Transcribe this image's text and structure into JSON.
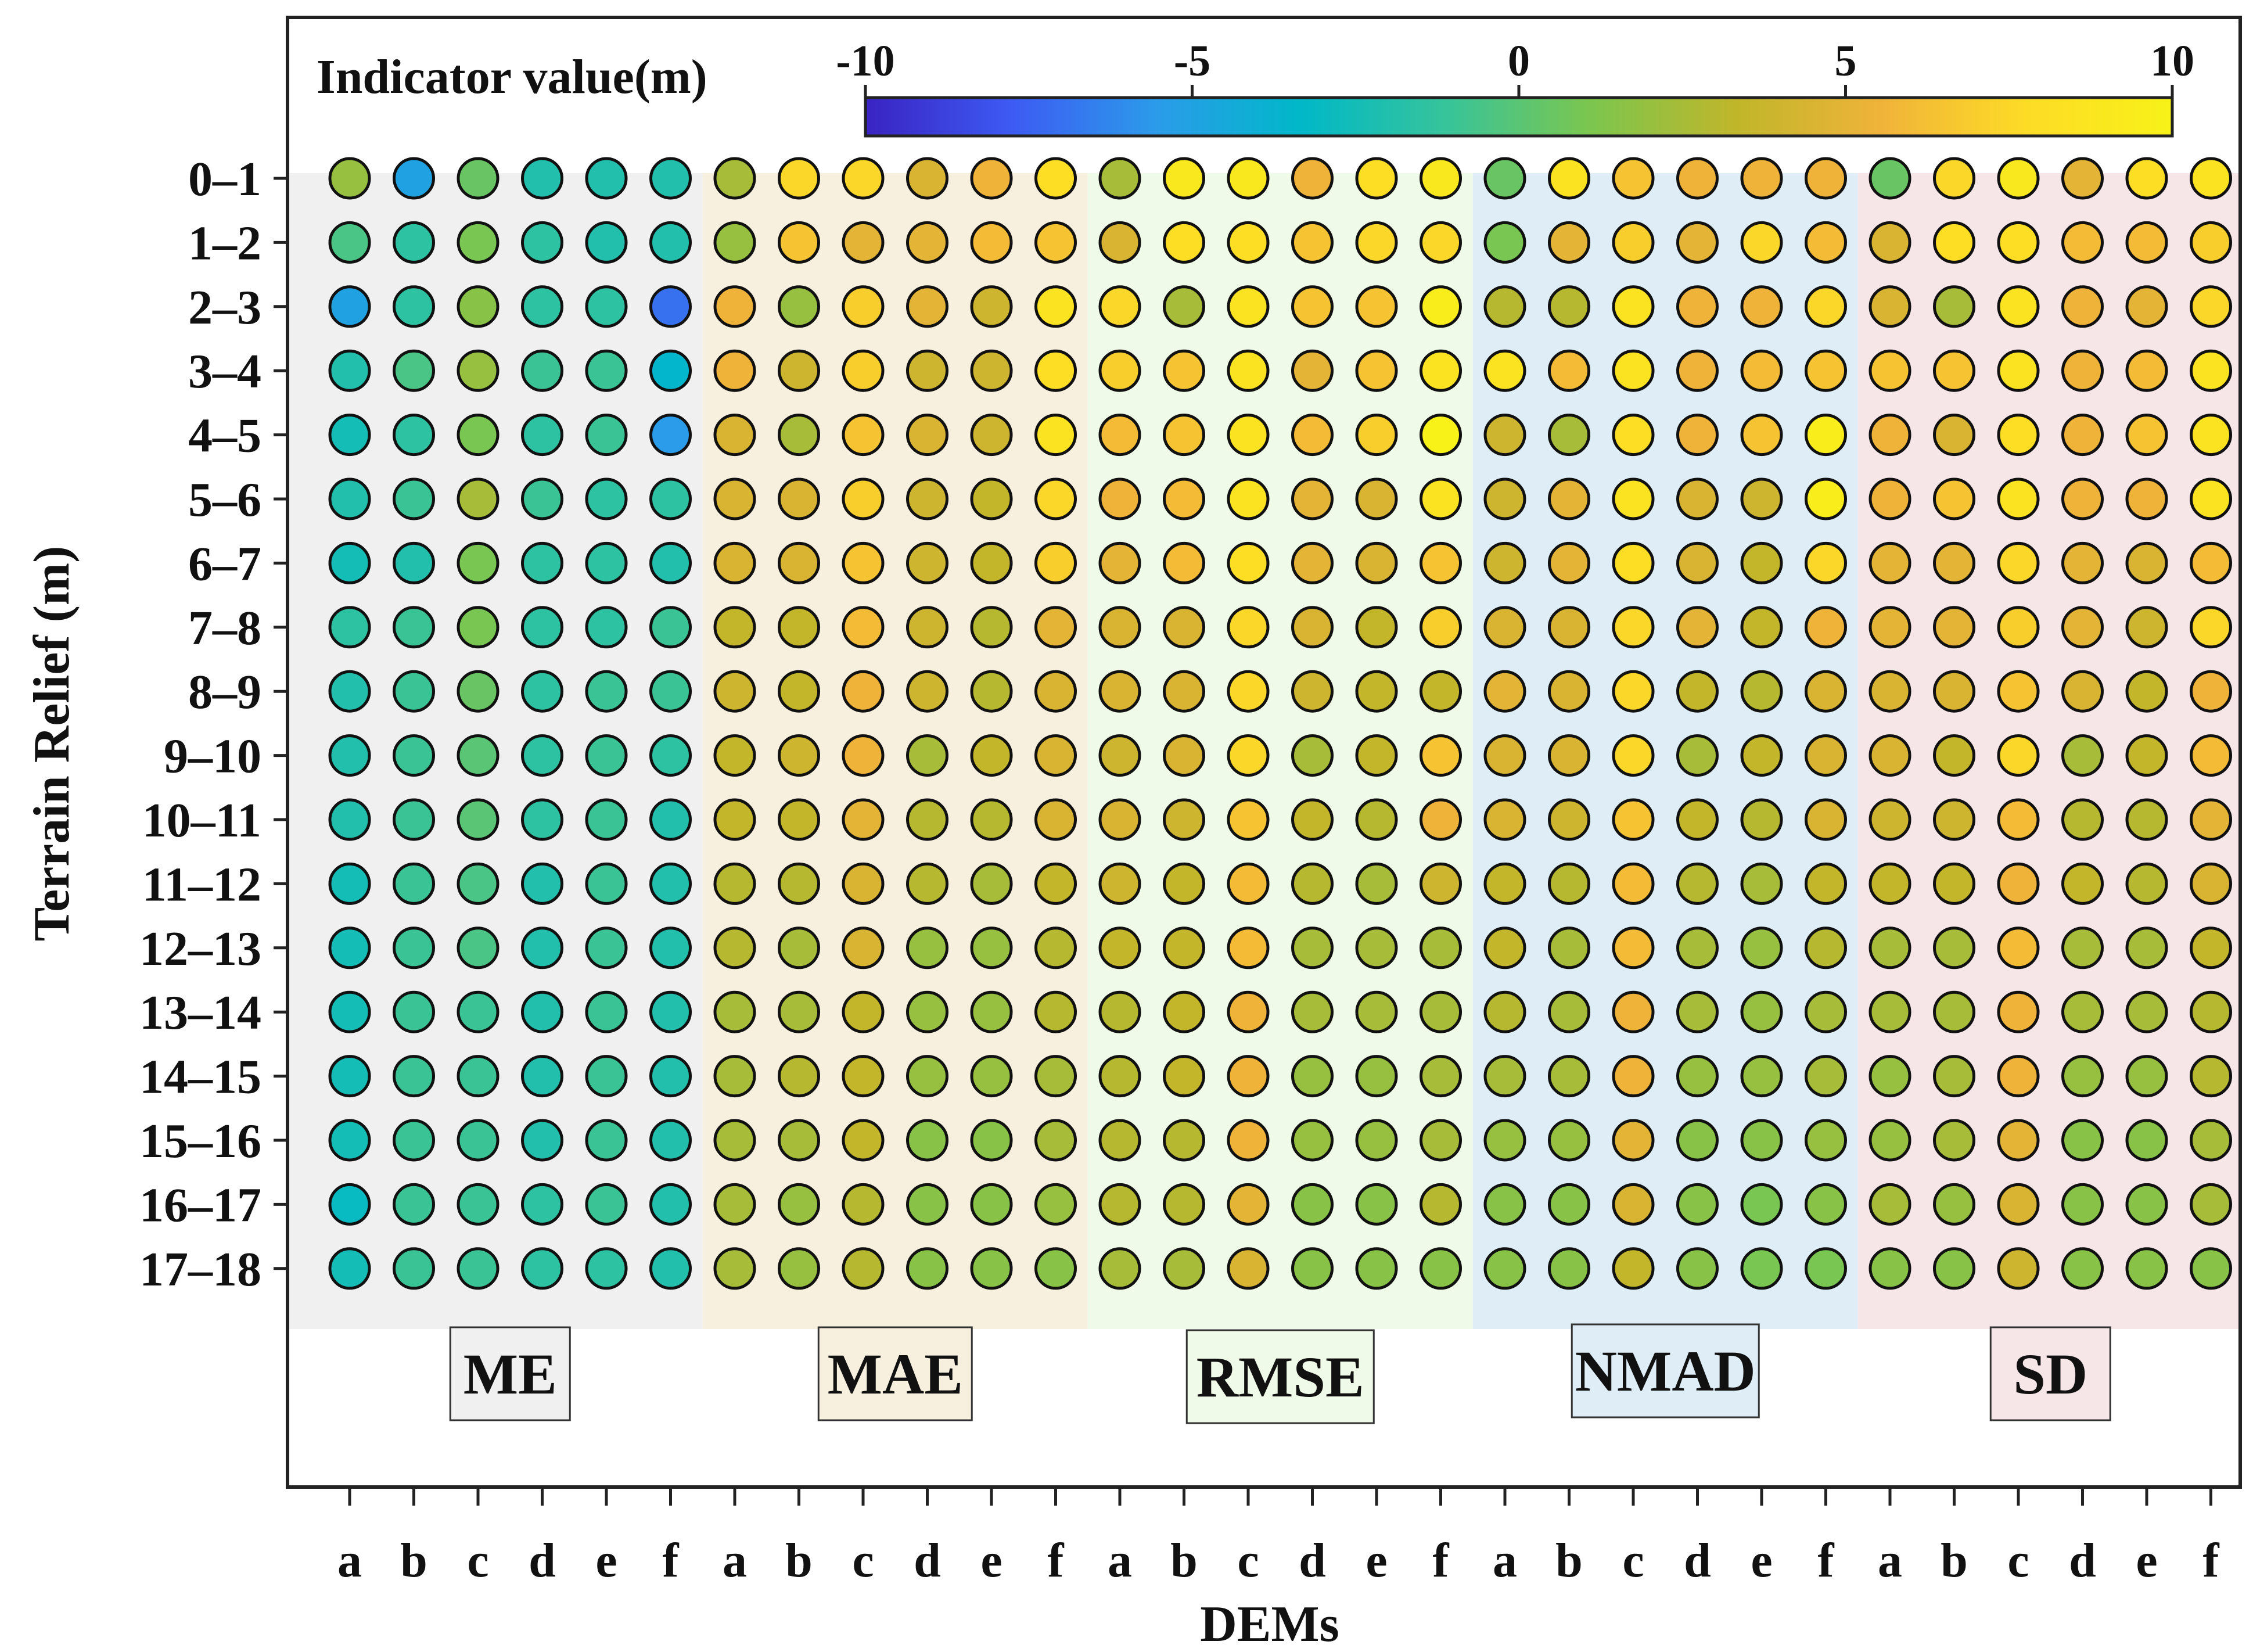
{
  "chart_data": {
    "type": "scatter",
    "title": "",
    "colorbar": {
      "label": "Indicator value(m)",
      "ticks": [
        -10,
        -5,
        0,
        5,
        10
      ],
      "range": [
        -10,
        10
      ],
      "colors": [
        "#3a23c2",
        "#3d5af3",
        "#2b9bea",
        "#00b8c8",
        "#37c49a",
        "#7cc64e",
        "#c0b62a",
        "#f0b33a",
        "#fddc26",
        "#f8f218"
      ]
    },
    "xlabel": "DEMs",
    "ylabel": "Terrain Relief (m)",
    "x_ticks": [
      "a",
      "b",
      "c",
      "d",
      "e",
      "f",
      "a",
      "b",
      "c",
      "d",
      "e",
      "f",
      "a",
      "b",
      "c",
      "d",
      "e",
      "f",
      "a",
      "b",
      "c",
      "d",
      "e",
      "f",
      "a",
      "b",
      "c",
      "d",
      "e",
      "f"
    ],
    "y_ticks": [
      "0–1",
      "1–2",
      "2–3",
      "3–4",
      "4–5",
      "5–6",
      "6–7",
      "7–8",
      "8–9",
      "9–10",
      "10–11",
      "11–12",
      "12–13",
      "13–14",
      "14–15",
      "15–16",
      "16–17",
      "17–18"
    ],
    "groups": [
      {
        "label": "ME",
        "color": "#f0f0f0"
      },
      {
        "label": "MAE",
        "color": "#f8f0df"
      },
      {
        "label": "RMSE",
        "color": "#f0fae8"
      },
      {
        "label": "NMAD",
        "color": "#dfeef6"
      },
      {
        "label": "SD",
        "color": "#f6e6e8"
      }
    ],
    "values": [
      [
        2.0,
        -5.0,
        0.5,
        -2.0,
        -2.0,
        -2.0,
        2.5,
        7.5,
        7.5,
        4.5,
        5.5,
        8.0,
        2.5,
        9.0,
        9.0,
        5.5,
        8.0,
        9.0,
        0.5,
        8.5,
        6.5,
        5.5,
        5.5,
        5.5,
        0.5,
        7.5,
        9.0,
        5.0,
        8.0,
        8.5
      ],
      [
        -0.5,
        -1.5,
        1.0,
        -1.5,
        -2.0,
        -2.0,
        2.0,
        6.5,
        5.0,
        5.0,
        6.0,
        6.5,
        4.5,
        8.0,
        8.0,
        6.5,
        7.5,
        7.5,
        1.0,
        5.0,
        7.0,
        5.0,
        7.5,
        6.0,
        4.5,
        8.0,
        8.0,
        6.0,
        6.0,
        7.0
      ],
      [
        -5.0,
        -1.5,
        1.5,
        -1.5,
        -1.5,
        -7.0,
        5.5,
        2.0,
        7.0,
        5.0,
        4.0,
        8.5,
        7.5,
        2.5,
        8.5,
        6.5,
        6.5,
        9.5,
        3.0,
        3.0,
        8.5,
        5.5,
        5.5,
        7.5,
        4.5,
        2.5,
        8.5,
        5.5,
        5.0,
        7.5
      ],
      [
        -2.0,
        -0.5,
        2.0,
        -1.0,
        -1.0,
        -3.5,
        5.5,
        4.0,
        7.0,
        4.0,
        4.0,
        8.0,
        7.0,
        6.5,
        8.5,
        5.0,
        6.5,
        8.5,
        8.5,
        6.0,
        8.5,
        5.5,
        6.0,
        6.5,
        6.5,
        6.5,
        8.5,
        5.5,
        6.0,
        8.5
      ],
      [
        -2.5,
        -1.5,
        1.0,
        -1.5,
        -1.0,
        -5.5,
        4.5,
        2.5,
        6.5,
        4.5,
        4.0,
        8.5,
        6.0,
        6.5,
        8.5,
        6.0,
        7.0,
        10.0,
        4.0,
        2.5,
        8.0,
        5.5,
        6.5,
        9.5,
        5.5,
        4.5,
        8.0,
        5.5,
        6.5,
        8.5
      ],
      [
        -2.0,
        -1.0,
        2.5,
        -1.0,
        -1.5,
        -1.5,
        4.5,
        4.5,
        7.0,
        4.0,
        3.5,
        7.5,
        5.5,
        6.0,
        8.5,
        5.0,
        4.5,
        8.5,
        4.0,
        5.0,
        8.5,
        4.5,
        4.0,
        9.5,
        5.5,
        6.5,
        8.5,
        5.5,
        5.5,
        8.5
      ],
      [
        -2.5,
        -2.0,
        1.0,
        -1.5,
        -1.5,
        -2.0,
        4.5,
        4.5,
        6.5,
        4.0,
        3.5,
        7.0,
        5.0,
        6.0,
        8.0,
        5.0,
        4.5,
        6.5,
        4.0,
        5.0,
        8.0,
        4.5,
        3.5,
        7.5,
        5.0,
        5.0,
        7.5,
        5.0,
        4.5,
        6.0
      ],
      [
        -1.5,
        -1.0,
        1.0,
        -1.5,
        -1.5,
        -1.0,
        3.5,
        3.5,
        6.0,
        4.0,
        3.0,
        5.0,
        4.5,
        4.5,
        7.5,
        4.5,
        3.5,
        7.0,
        4.5,
        4.5,
        7.5,
        5.0,
        3.5,
        5.5,
        5.0,
        5.0,
        7.0,
        5.0,
        4.0,
        7.5
      ],
      [
        -2.0,
        -1.0,
        0.5,
        -1.5,
        -1.0,
        -1.0,
        4.0,
        3.5,
        5.5,
        4.0,
        3.0,
        4.5,
        4.5,
        4.5,
        7.5,
        4.0,
        3.5,
        3.5,
        5.0,
        4.5,
        7.5,
        3.5,
        3.0,
        4.5,
        4.5,
        4.5,
        6.5,
        4.5,
        3.5,
        5.5
      ],
      [
        -2.0,
        -1.0,
        0.0,
        -1.5,
        -1.0,
        -1.5,
        3.5,
        4.0,
        5.5,
        2.5,
        3.5,
        4.5,
        4.0,
        4.5,
        7.5,
        2.5,
        3.5,
        6.5,
        4.5,
        4.5,
        7.5,
        2.5,
        3.5,
        4.5,
        4.5,
        3.5,
        7.5,
        2.5,
        3.5,
        6.0
      ],
      [
        -2.0,
        -1.0,
        0.0,
        -1.5,
        -1.0,
        -2.0,
        3.5,
        3.5,
        5.0,
        3.0,
        3.0,
        4.5,
        4.5,
        4.0,
        6.5,
        3.5,
        3.0,
        5.5,
        4.5,
        4.0,
        6.5,
        3.5,
        3.0,
        4.5,
        4.0,
        4.0,
        6.0,
        3.0,
        3.0,
        5.0
      ],
      [
        -2.5,
        -1.0,
        -0.5,
        -2.0,
        -1.0,
        -2.0,
        3.0,
        3.0,
        4.5,
        3.0,
        2.5,
        3.5,
        4.0,
        3.5,
        6.0,
        3.0,
        2.5,
        4.0,
        3.5,
        3.0,
        6.0,
        3.0,
        2.5,
        3.5,
        3.5,
        3.5,
        5.5,
        3.5,
        3.0,
        4.5
      ],
      [
        -2.5,
        -1.0,
        -0.5,
        -2.0,
        -1.0,
        -2.0,
        3.0,
        2.5,
        4.5,
        2.0,
        2.0,
        3.0,
        3.5,
        3.5,
        6.0,
        2.5,
        2.5,
        2.5,
        3.5,
        2.5,
        6.0,
        2.5,
        2.0,
        3.0,
        2.5,
        2.5,
        6.0,
        2.5,
        2.5,
        3.5
      ],
      [
        -2.5,
        -1.0,
        -1.0,
        -2.0,
        -1.0,
        -2.0,
        2.5,
        2.5,
        3.5,
        2.0,
        2.0,
        3.0,
        3.0,
        3.5,
        5.5,
        2.5,
        2.5,
        2.5,
        3.0,
        2.5,
        5.5,
        2.5,
        2.0,
        2.5,
        2.5,
        2.5,
        5.5,
        2.5,
        2.5,
        3.0
      ],
      [
        -2.5,
        -1.0,
        -1.0,
        -2.0,
        -1.0,
        -2.0,
        2.5,
        3.0,
        3.5,
        2.0,
        2.0,
        2.5,
        3.0,
        3.5,
        5.5,
        2.0,
        2.0,
        2.5,
        2.5,
        2.5,
        5.5,
        2.0,
        2.0,
        2.5,
        2.0,
        2.5,
        5.5,
        2.0,
        2.0,
        3.0
      ],
      [
        -2.5,
        -1.0,
        -1.0,
        -2.0,
        -1.0,
        -2.0,
        2.5,
        2.5,
        3.5,
        1.5,
        1.5,
        2.5,
        3.0,
        3.0,
        5.5,
        2.0,
        2.0,
        2.5,
        2.0,
        2.0,
        5.0,
        1.5,
        1.5,
        2.0,
        2.0,
        2.5,
        5.0,
        1.5,
        1.5,
        2.5
      ],
      [
        -3.0,
        -1.0,
        -1.0,
        -1.5,
        -1.0,
        -2.0,
        2.5,
        2.0,
        3.0,
        1.5,
        1.5,
        2.0,
        3.0,
        3.0,
        5.0,
        1.5,
        1.5,
        3.0,
        1.5,
        1.5,
        4.5,
        1.5,
        1.0,
        1.5,
        2.5,
        2.0,
        4.5,
        1.5,
        1.5,
        2.5
      ],
      [
        -2.5,
        -1.0,
        -1.0,
        -1.5,
        -1.5,
        -2.0,
        2.5,
        2.0,
        3.0,
        1.5,
        1.5,
        1.5,
        2.5,
        2.5,
        4.5,
        1.5,
        1.5,
        1.5,
        1.5,
        1.5,
        3.5,
        1.5,
        1.0,
        1.0,
        1.5,
        1.5,
        4.0,
        1.5,
        1.5,
        1.5
      ]
    ]
  }
}
